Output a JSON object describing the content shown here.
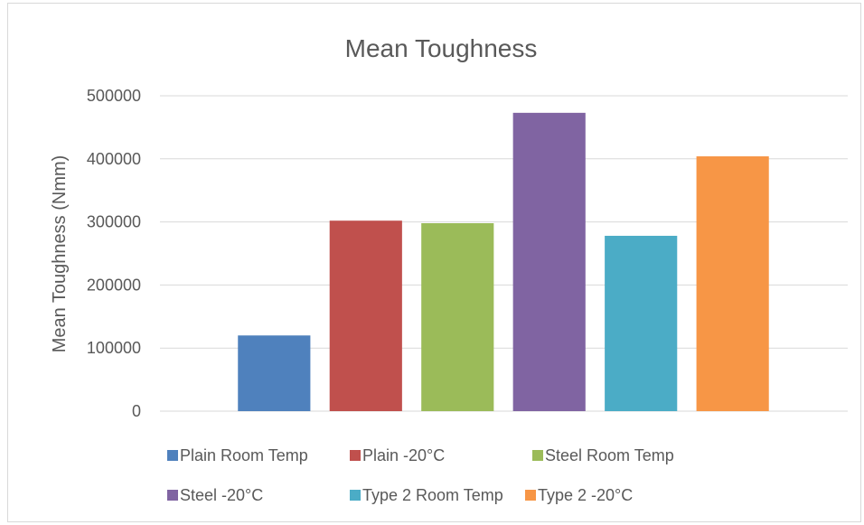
{
  "chart_data": {
    "type": "bar",
    "title": "Mean Toughness",
    "xlabel": "",
    "ylabel": "Mean Toughness (Nmm)",
    "ylim": [
      0,
      500000
    ],
    "yticks": [
      0,
      100000,
      200000,
      300000,
      400000,
      500000
    ],
    "ytick_labels": [
      "0",
      "100000",
      "200000",
      "300000",
      "400000",
      "500000"
    ],
    "grid": true,
    "legend_position": "bottom",
    "series": [
      {
        "name": "Plain Room Temp",
        "values": [
          120000
        ],
        "color": "#4f81bd"
      },
      {
        "name": "Plain -20°C",
        "values": [
          302000
        ],
        "color": "#c0504d"
      },
      {
        "name": "Steel Room Temp",
        "values": [
          298000
        ],
        "color": "#9bbb59"
      },
      {
        "name": "Steel -20°C",
        "values": [
          473000
        ],
        "color": "#8064a2"
      },
      {
        "name": "Type 2 Room Temp",
        "values": [
          278000
        ],
        "color": "#4bacc6"
      },
      {
        "name": "Type 2 -20°C",
        "values": [
          404000
        ],
        "color": "#f79646"
      }
    ]
  }
}
